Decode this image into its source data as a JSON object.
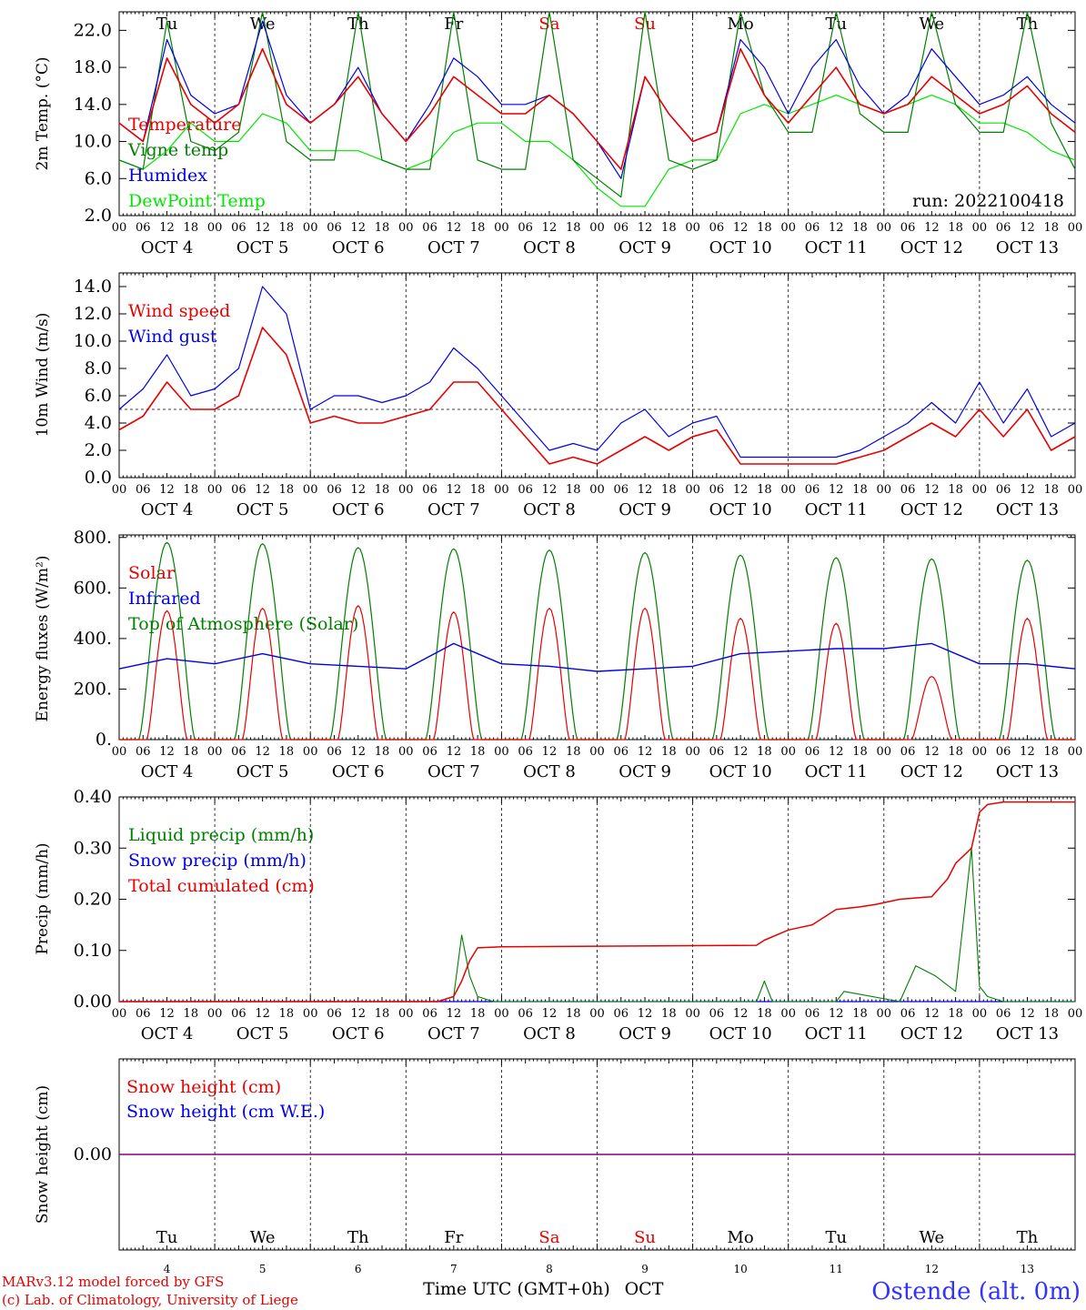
{
  "chart_data": [
    {
      "type": "line",
      "ylabel": "2m Temp. (°C)",
      "y_ticks": [
        "22.0",
        "18.0",
        "14.0",
        "10.0",
        "6.0",
        "2.0"
      ],
      "ylim": [
        2,
        24
      ],
      "run_label": "run: 2022100418",
      "weekdays": [
        "Tu",
        "We",
        "Th",
        "Fr",
        "Sa",
        "Su",
        "Mo",
        "Tu",
        "We",
        "Th"
      ],
      "weekday_colors": [
        "#000000",
        "#000000",
        "#000000",
        "#000000",
        "#e60000",
        "#e60000",
        "#000000",
        "#000000",
        "#000000",
        "#000000"
      ],
      "series": [
        {
          "name": "Temperature",
          "color": "#e60000",
          "x": [
            0,
            6,
            12,
            18,
            24,
            30,
            36,
            42,
            48,
            54,
            60,
            66,
            72,
            78,
            84,
            90,
            96,
            102,
            108,
            114,
            120,
            126,
            132,
            138,
            144,
            150,
            156,
            162,
            168,
            174,
            180,
            186,
            192,
            198,
            204,
            210,
            216,
            222,
            228,
            234,
            240
          ],
          "values": [
            12,
            10,
            19,
            14,
            12,
            14,
            20,
            14,
            12,
            14,
            17,
            13,
            10,
            13,
            17,
            15,
            13,
            13,
            15,
            13,
            10,
            7,
            17,
            13,
            10,
            11,
            20,
            15,
            12,
            15,
            18,
            14,
            13,
            14,
            17,
            15,
            13,
            14,
            16,
            13,
            11
          ]
        },
        {
          "name": "Vigne temp",
          "color": "#008000",
          "x": [
            0,
            6,
            12,
            18,
            24,
            30,
            36,
            42,
            48,
            54,
            60,
            66,
            72,
            78,
            84,
            90,
            96,
            102,
            108,
            114,
            120,
            126,
            132,
            138,
            144,
            150,
            156,
            162,
            168,
            174,
            180,
            186,
            192,
            198,
            204,
            210,
            216,
            222,
            228,
            234,
            240
          ],
          "values": [
            8,
            7,
            23,
            10,
            9,
            11,
            24,
            10,
            8,
            8,
            24,
            8,
            7,
            7,
            24,
            8,
            7,
            7,
            24,
            8,
            6,
            4,
            24,
            8,
            7,
            8,
            24,
            15,
            11,
            11,
            24,
            13,
            11,
            11,
            24,
            14,
            11,
            11,
            24,
            12,
            7
          ]
        },
        {
          "name": "Humidex",
          "color": "#0000e6",
          "x": [
            0,
            6,
            12,
            18,
            24,
            30,
            36,
            42,
            48,
            54,
            60,
            66,
            72,
            78,
            84,
            90,
            96,
            102,
            108,
            114,
            120,
            126,
            132,
            138,
            144,
            150,
            156,
            162,
            168,
            174,
            180,
            186,
            192,
            198,
            204,
            210,
            216,
            222,
            228,
            234,
            240
          ],
          "values": [
            12,
            10,
            21,
            15,
            13,
            14,
            23,
            15,
            12,
            14,
            18,
            13,
            10,
            14,
            19,
            17,
            14,
            14,
            15,
            13,
            10,
            6,
            17,
            13,
            10,
            11,
            21,
            18,
            13,
            18,
            21,
            16,
            13,
            15,
            20,
            17,
            14,
            15,
            17,
            14,
            12
          ]
        },
        {
          "name": "DewPoint Temp",
          "color": "#00e600",
          "x": [
            0,
            6,
            12,
            18,
            24,
            30,
            36,
            42,
            48,
            54,
            60,
            66,
            72,
            78,
            84,
            90,
            96,
            102,
            108,
            114,
            120,
            126,
            132,
            138,
            144,
            150,
            156,
            162,
            168,
            174,
            180,
            186,
            192,
            198,
            204,
            210,
            216,
            222,
            228,
            234,
            240
          ],
          "values": [
            8,
            7,
            9,
            12,
            10,
            10,
            13,
            12,
            9,
            9,
            9,
            8,
            7,
            8,
            11,
            12,
            12,
            10,
            10,
            8,
            5,
            3,
            3,
            7,
            8,
            8,
            13,
            14,
            13,
            14,
            15,
            14,
            13,
            14,
            15,
            14,
            12,
            12,
            11,
            9,
            8
          ]
        }
      ]
    },
    {
      "type": "line",
      "ylabel": "10m Wind (m/s)",
      "y_ticks": [
        "14.0",
        "12.0",
        "10.0",
        "8.0",
        "6.0",
        "4.0",
        "2.0",
        "0.0"
      ],
      "ylim": [
        0,
        15
      ],
      "reference_line": 5,
      "series": [
        {
          "name": "Wind speed",
          "color": "#e60000",
          "x": [
            0,
            6,
            12,
            18,
            24,
            30,
            36,
            42,
            48,
            54,
            60,
            66,
            72,
            78,
            84,
            90,
            96,
            102,
            108,
            114,
            120,
            126,
            132,
            138,
            144,
            150,
            156,
            162,
            168,
            174,
            180,
            186,
            192,
            198,
            204,
            210,
            216,
            222,
            228,
            234,
            240
          ],
          "values": [
            3.5,
            4.5,
            7,
            5,
            5,
            6,
            11,
            9,
            4,
            4.5,
            4,
            4,
            4.5,
            5,
            7,
            7,
            5,
            3,
            1,
            1.5,
            1,
            2,
            3,
            2,
            3,
            3.5,
            1,
            1,
            1,
            1,
            1,
            1.5,
            2,
            3,
            4,
            3,
            5,
            3,
            5,
            2,
            3
          ]
        },
        {
          "name": "Wind gust",
          "color": "#0000e6",
          "x": [
            0,
            6,
            12,
            18,
            24,
            30,
            36,
            42,
            48,
            54,
            60,
            66,
            72,
            78,
            84,
            90,
            96,
            102,
            108,
            114,
            120,
            126,
            132,
            138,
            144,
            150,
            156,
            162,
            168,
            174,
            180,
            186,
            192,
            198,
            204,
            210,
            216,
            222,
            228,
            234,
            240
          ],
          "values": [
            5,
            6.5,
            9,
            6,
            6.5,
            8,
            14,
            12,
            5,
            6,
            6,
            5.5,
            6,
            7,
            9.5,
            8,
            6,
            4,
            2,
            2.5,
            2,
            4,
            5,
            3,
            4,
            4.5,
            1.5,
            1.5,
            1.5,
            1.5,
            1.5,
            2,
            3,
            4,
            5.5,
            4,
            7,
            4,
            6.5,
            3,
            4
          ]
        }
      ]
    },
    {
      "type": "line",
      "ylabel": "Energy fluxes (W/m²)",
      "y_ticks": [
        "800.",
        "600.",
        "400.",
        "200.",
        "0."
      ],
      "ylim": [
        0,
        810
      ],
      "series": [
        {
          "name": "Solar",
          "color": "#e60000",
          "daily_peaks": [
            510,
            520,
            530,
            505,
            520,
            520,
            480,
            460,
            250,
            480
          ]
        },
        {
          "name": "Infrared",
          "color": "#0000e6",
          "x": [
            0,
            12,
            24,
            36,
            48,
            60,
            72,
            84,
            96,
            108,
            120,
            132,
            144,
            156,
            168,
            180,
            192,
            204,
            216,
            228,
            240
          ],
          "values": [
            280,
            320,
            300,
            340,
            300,
            290,
            280,
            380,
            300,
            290,
            270,
            280,
            290,
            340,
            350,
            360,
            360,
            380,
            300,
            300,
            280
          ]
        },
        {
          "name": "Top of Atmosphere (Solar)",
          "color": "#008000",
          "daily_peaks": [
            780,
            775,
            760,
            755,
            750,
            740,
            730,
            720,
            715,
            710
          ]
        }
      ]
    },
    {
      "type": "line",
      "ylabel": "Precip (mm/h)",
      "y_ticks": [
        "0.40",
        "0.30",
        "0.20",
        "0.10",
        "0.00"
      ],
      "ylim": [
        0,
        0.4
      ],
      "series": [
        {
          "name": "Liquid precip (mm/h)",
          "color": "#008000",
          "x": [
            0,
            80,
            84,
            86,
            88,
            90,
            94,
            96,
            160,
            162,
            164,
            180,
            182,
            196,
            200,
            205,
            210,
            214,
            216,
            218,
            222,
            240
          ],
          "values": [
            0,
            0,
            0.01,
            0.13,
            0.05,
            0.01,
            0,
            0,
            0,
            0.04,
            0,
            0,
            0.02,
            0,
            0.07,
            0.05,
            0.02,
            0.3,
            0.03,
            0.01,
            0,
            0
          ]
        },
        {
          "name": "Snow precip (mm/h)",
          "color": "#0000e6",
          "x": [
            0,
            240
          ],
          "values": [
            0,
            0
          ]
        },
        {
          "name": "Total cumulated (cm)",
          "color": "#e60000",
          "x": [
            0,
            80,
            84,
            86,
            88,
            90,
            96,
            160,
            162,
            168,
            174,
            180,
            186,
            190,
            196,
            204,
            208,
            210,
            212,
            214,
            216,
            218,
            222,
            240
          ],
          "values": [
            0,
            0,
            0.01,
            0.04,
            0.08,
            0.105,
            0.107,
            0.11,
            0.12,
            0.14,
            0.15,
            0.18,
            0.185,
            0.19,
            0.2,
            0.205,
            0.24,
            0.27,
            0.285,
            0.3,
            0.37,
            0.385,
            0.39,
            0.39
          ]
        }
      ]
    },
    {
      "type": "line",
      "ylabel": "Snow height (cm)",
      "y_ticks": [
        "0.00"
      ],
      "ylim": [
        -1,
        1
      ],
      "series": [
        {
          "name": "Snow height (cm)",
          "color": "#e60000",
          "x": [
            0,
            240
          ],
          "values": [
            0,
            0
          ]
        },
        {
          "name": "Snow height (cm W.E.)",
          "color": "#0000e6",
          "x": [
            0,
            240
          ],
          "values": [
            0,
            0
          ]
        }
      ],
      "weekdays": [
        "Tu",
        "We",
        "Th",
        "Fr",
        "Sa",
        "Su",
        "Mo",
        "Tu",
        "We",
        "Th"
      ],
      "weekday_colors": [
        "#000000",
        "#000000",
        "#000000",
        "#000000",
        "#e60000",
        "#e60000",
        "#000000",
        "#000000",
        "#000000",
        "#000000"
      ],
      "day_numbers": [
        "4",
        "5",
        "6",
        "7",
        "8",
        "9",
        "10",
        "11",
        "12",
        "13"
      ]
    }
  ],
  "x_axis": {
    "hour_ticks": [
      "00",
      "06",
      "12",
      "18"
    ],
    "date_labels": [
      "OCT  4",
      "OCT  5",
      "OCT  6",
      "OCT  7",
      "OCT  8",
      "OCT  9",
      "OCT 10",
      "OCT 11",
      "OCT 12",
      "OCT 13"
    ],
    "xlabel": "Time UTC (GMT+0h)",
    "month": "OCT"
  },
  "footer": {
    "model": "MARv3.12 model forced by GFS",
    "credit": "(c) Lab. of Climatology, University of Liege",
    "station": "Ostende (alt. 0m)"
  }
}
